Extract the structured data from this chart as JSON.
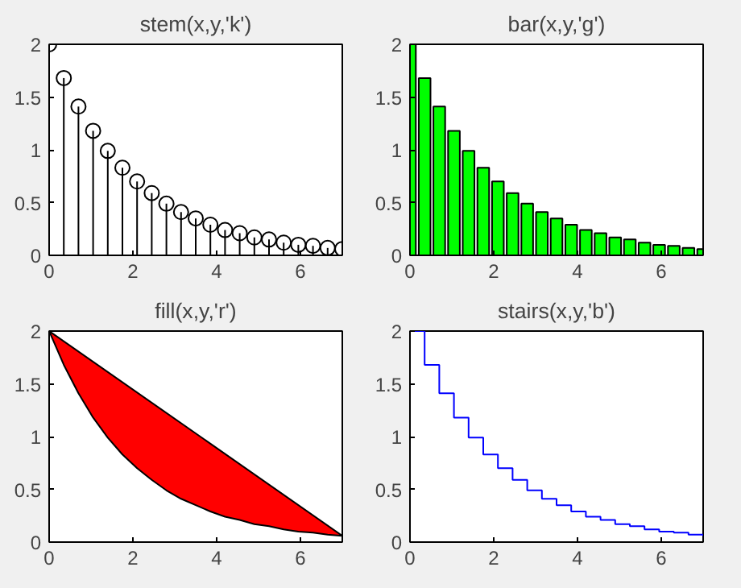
{
  "chart_data": [
    {
      "type": "lollipop",
      "title": "stem(x,y,'k')",
      "x": [
        0,
        0.35,
        0.7,
        1.05,
        1.4,
        1.75,
        2.1,
        2.45,
        2.8,
        3.15,
        3.5,
        3.85,
        4.2,
        4.55,
        4.9,
        5.25,
        5.6,
        5.95,
        6.3,
        6.65,
        7.0
      ],
      "values": [
        2,
        1.68,
        1.41,
        1.18,
        0.99,
        0.83,
        0.7,
        0.59,
        0.49,
        0.41,
        0.35,
        0.29,
        0.24,
        0.21,
        0.17,
        0.15,
        0.12,
        0.1,
        0.09,
        0.07,
        0.06
      ],
      "color": "#000000",
      "marker": "circle",
      "xlim": [
        0,
        7
      ],
      "ylim": [
        0,
        2
      ],
      "xticks": [
        0,
        2,
        4,
        6
      ],
      "yticks": [
        0,
        0.5,
        1,
        1.5,
        2
      ]
    },
    {
      "type": "bar",
      "title": "bar(x,y,'g')",
      "x": [
        0,
        0.35,
        0.7,
        1.05,
        1.4,
        1.75,
        2.1,
        2.45,
        2.8,
        3.15,
        3.5,
        3.85,
        4.2,
        4.55,
        4.9,
        5.25,
        5.6,
        5.95,
        6.3,
        6.65,
        7.0
      ],
      "values": [
        2,
        1.68,
        1.41,
        1.18,
        0.99,
        0.83,
        0.7,
        0.59,
        0.49,
        0.41,
        0.35,
        0.29,
        0.24,
        0.21,
        0.17,
        0.15,
        0.12,
        0.1,
        0.09,
        0.07,
        0.06
      ],
      "color": "#00ff00",
      "xlim": [
        0,
        7
      ],
      "ylim": [
        0,
        2
      ],
      "xticks": [
        0,
        2,
        4,
        6
      ],
      "yticks": [
        0,
        0.5,
        1,
        1.5,
        2
      ]
    },
    {
      "type": "area",
      "title": "fill(x,y,'r')",
      "x": [
        0,
        0.35,
        0.7,
        1.05,
        1.4,
        1.75,
        2.1,
        2.45,
        2.8,
        3.15,
        3.5,
        3.85,
        4.2,
        4.55,
        4.9,
        5.25,
        5.6,
        5.95,
        6.3,
        6.65,
        7.0
      ],
      "values": [
        2,
        1.68,
        1.41,
        1.18,
        0.99,
        0.83,
        0.7,
        0.59,
        0.49,
        0.41,
        0.35,
        0.29,
        0.24,
        0.21,
        0.17,
        0.15,
        0.12,
        0.1,
        0.09,
        0.07,
        0.06
      ],
      "color": "#ff0000",
      "xlim": [
        0,
        7
      ],
      "ylim": [
        0,
        2
      ],
      "xticks": [
        0,
        2,
        4,
        6
      ],
      "yticks": [
        0,
        0.5,
        1,
        1.5,
        2
      ]
    },
    {
      "type": "step",
      "title": "stairs(x,y,'b')",
      "x": [
        0,
        0.35,
        0.7,
        1.05,
        1.4,
        1.75,
        2.1,
        2.45,
        2.8,
        3.15,
        3.5,
        3.85,
        4.2,
        4.55,
        4.9,
        5.25,
        5.6,
        5.95,
        6.3,
        6.65,
        7.0
      ],
      "values": [
        2,
        1.68,
        1.41,
        1.18,
        0.99,
        0.83,
        0.7,
        0.59,
        0.49,
        0.41,
        0.35,
        0.29,
        0.24,
        0.21,
        0.17,
        0.15,
        0.12,
        0.1,
        0.09,
        0.07,
        0.06
      ],
      "color": "#0000ff",
      "xlim": [
        0,
        7
      ],
      "ylim": [
        0,
        2
      ],
      "xticks": [
        0,
        2,
        4,
        6
      ],
      "yticks": [
        0,
        0.5,
        1,
        1.5,
        2
      ]
    }
  ]
}
